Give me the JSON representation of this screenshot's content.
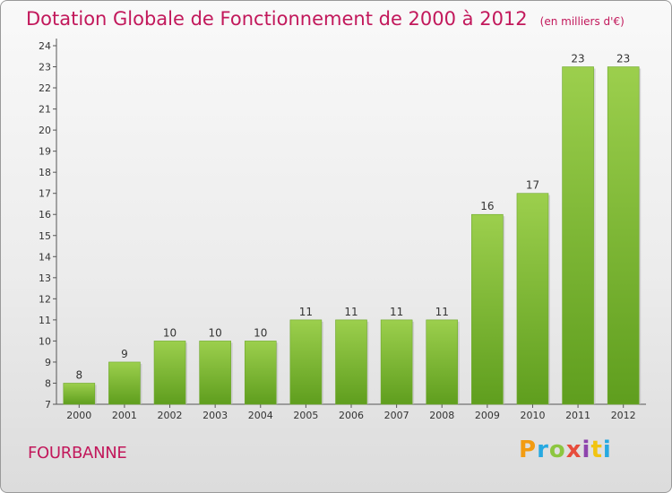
{
  "header": {
    "title": "Dotation Globale de Fonctionnement de 2000 à 2012",
    "unit": "(en milliers d'€)"
  },
  "footer": {
    "place": "FOURBANNE",
    "logo": "Proxiti"
  },
  "colors": {
    "accent": "#c2185b",
    "bar_top": "#9ccf4d",
    "bar_bottom": "#5f9e1e"
  },
  "chart_data": {
    "type": "bar",
    "title": "Dotation Globale de Fonctionnement de 2000 à 2012",
    "subtitle": "(en milliers d'€)",
    "categories": [
      "2000",
      "2001",
      "2002",
      "2003",
      "2004",
      "2005",
      "2006",
      "2007",
      "2008",
      "2009",
      "2010",
      "2011",
      "2012"
    ],
    "values": [
      8,
      9,
      10,
      10,
      10,
      11,
      11,
      11,
      11,
      16,
      17,
      23,
      23
    ],
    "data_labels": [
      "8",
      "9",
      "10",
      "10",
      "10",
      "11",
      "11",
      "11",
      "11",
      "16",
      "17",
      "23",
      "23"
    ],
    "yticks": [
      "7",
      "8",
      "9",
      "10",
      "11",
      "12",
      "13",
      "14",
      "15",
      "16",
      "17",
      "18",
      "19",
      "20",
      "21",
      "22",
      "23",
      "24"
    ],
    "ylim": [
      7,
      24
    ],
    "xlabel": "",
    "ylabel": "",
    "grid": false,
    "legend": "none"
  }
}
